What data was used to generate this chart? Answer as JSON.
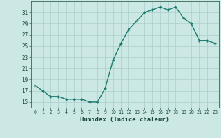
{
  "x": [
    0,
    1,
    2,
    3,
    4,
    5,
    6,
    7,
    8,
    9,
    10,
    11,
    12,
    13,
    14,
    15,
    16,
    17,
    18,
    19,
    20,
    21,
    22,
    23
  ],
  "y": [
    18,
    17,
    16,
    16,
    15.5,
    15.5,
    15.5,
    15,
    15,
    17.5,
    22.5,
    25.5,
    28,
    29.5,
    31,
    31.5,
    32,
    31.5,
    32,
    30,
    29,
    26,
    26,
    25.5
  ],
  "line_color": "#1a7a6e",
  "marker_color": "#1a7a6e",
  "bg_color": "#cce8e5",
  "grid_color": "#aacfcc",
  "xlabel": "Humidex (Indice chaleur)",
  "ylim": [
    14,
    33
  ],
  "yticks": [
    15,
    17,
    19,
    21,
    23,
    25,
    27,
    29,
    31
  ],
  "ytick_labels": [
    "15",
    "17",
    "19",
    "21",
    "23",
    "25",
    "27",
    "29",
    "31"
  ],
  "xlim": [
    -0.5,
    23.5
  ],
  "xticks": [
    0,
    1,
    2,
    3,
    4,
    5,
    6,
    7,
    8,
    9,
    10,
    11,
    12,
    13,
    14,
    15,
    16,
    17,
    18,
    19,
    20,
    21,
    22,
    23
  ],
  "xtick_labels": [
    "0",
    "1",
    "2",
    "3",
    "4",
    "5",
    "6",
    "7",
    "8",
    "9",
    "10",
    "11",
    "12",
    "13",
    "14",
    "15",
    "16",
    "17",
    "18",
    "19",
    "20",
    "21",
    "22",
    "23"
  ],
  "line_width": 1.0,
  "marker_size": 2.5,
  "spine_color": "#336655",
  "tick_label_color": "#1a4a3a",
  "xlabel_color": "#1a4a3a"
}
